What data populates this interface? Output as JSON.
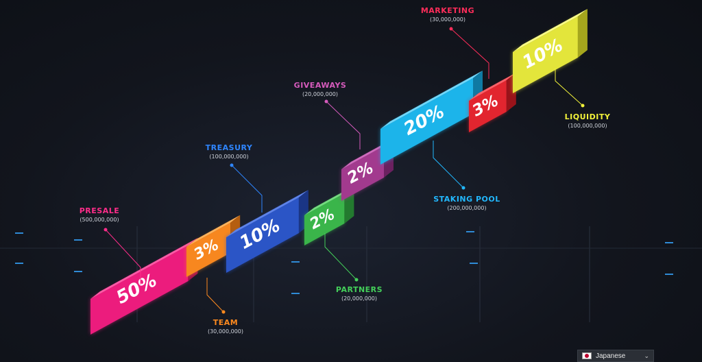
{
  "chart_data": {
    "type": "isometric-blocks",
    "segments": [
      {
        "name": "PRESALE",
        "amount": "(500,000,000)",
        "percent": "50%",
        "color": "#ec1c7d",
        "top": "#ff59a6",
        "side": "#a0124f"
      },
      {
        "name": "TEAM",
        "amount": "(30,000,000)",
        "percent": "3%",
        "color": "#f7871f",
        "top": "#ffb25a",
        "side": "#b55e10"
      },
      {
        "name": "TREASURY",
        "amount": "(100,000,000)",
        "percent": "10%",
        "color": "#2b55c6",
        "top": "#5d83ea",
        "side": "#1a3585"
      },
      {
        "name": "PARTNERS",
        "amount": "(20,000,000)",
        "percent": "2%",
        "color": "#3ab54a",
        "top": "#73dc7f",
        "side": "#237a2f"
      },
      {
        "name": "GIVEAWAYS",
        "amount": "(20,000,000)",
        "percent": "2%",
        "color": "#a23a8e",
        "top": "#cf6bbd",
        "side": "#6b2160"
      },
      {
        "name": "STAKING POOL",
        "amount": "(200,000,000)",
        "percent": "20%",
        "color": "#1cb4ea",
        "top": "#6fd7fb",
        "side": "#0f7aa3"
      },
      {
        "name": "MARKETING",
        "amount": "(30,000,000)",
        "percent": "3%",
        "color": "#e2252f",
        "top": "#ff6068",
        "side": "#99131a"
      },
      {
        "name": "LIQUIDITY",
        "amount": "(100,000,000)",
        "percent": "10%",
        "color": "#e3e53b",
        "top": "#fafc86",
        "side": "#a5a61d"
      }
    ],
    "label_colors": {
      "PRESALE": "#ff2d8a",
      "TEAM": "#ff8a1f",
      "TREASURY": "#2f86ff",
      "PARTNERS": "#44d05a",
      "GIVEAWAYS": "#d65bbd",
      "STAKING POOL": "#22b8ff",
      "MARKETING": "#ff2d5a",
      "LIQUIDITY": "#f2f23a"
    }
  },
  "language_selector": {
    "label": "Japanese",
    "flag": "japan-flag-icon",
    "chevron": "chevron-down-icon"
  }
}
